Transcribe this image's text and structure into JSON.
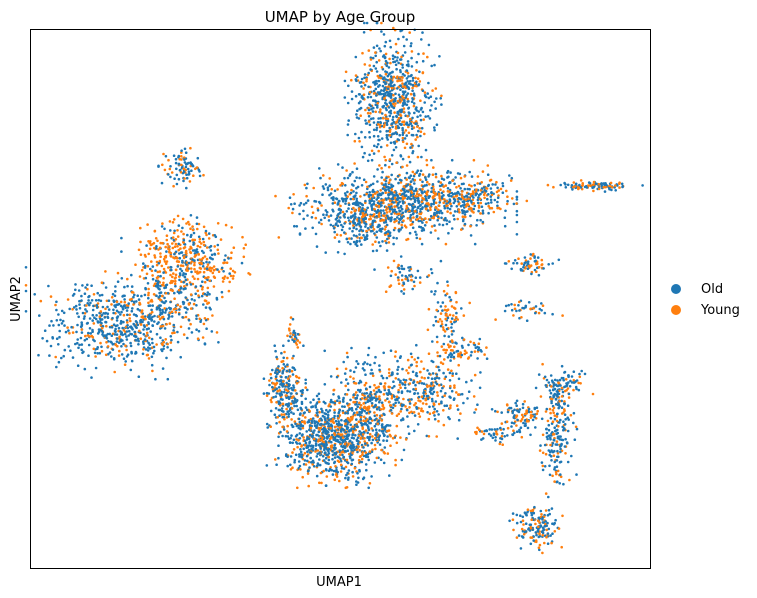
{
  "chart_data": {
    "type": "scatter",
    "title": "UMAP by Age Group",
    "xlabel": "UMAP1",
    "ylabel": "UMAP2",
    "xlim": [
      0,
      100
    ],
    "ylim": [
      0,
      100
    ],
    "ticks_shown": false,
    "grid": false,
    "legend_position": "right",
    "series": [
      {
        "name": "Old",
        "color": "#1f77b4"
      },
      {
        "name": "Young",
        "color": "#ff7f0e"
      }
    ],
    "clusters": [
      {
        "cx": 58.5,
        "cy": 87.0,
        "sx": 3.0,
        "sy": 5.5,
        "n": 700,
        "young_frac": 0.28
      },
      {
        "cx": 59.0,
        "cy": 68.0,
        "sx": 7.5,
        "sy": 3.0,
        "n": 950,
        "young_frac": 0.3
      },
      {
        "cx": 71.0,
        "cy": 69.0,
        "sx": 3.5,
        "sy": 1.8,
        "n": 180,
        "young_frac": 0.55
      },
      {
        "cx": 54.0,
        "cy": 63.0,
        "sx": 3.0,
        "sy": 2.0,
        "n": 150,
        "young_frac": 0.25
      },
      {
        "cx": 25.0,
        "cy": 57.5,
        "sx": 4.0,
        "sy": 3.5,
        "n": 400,
        "young_frac": 0.62
      },
      {
        "cx": 13.5,
        "cy": 45.5,
        "sx": 5.5,
        "sy": 4.0,
        "n": 550,
        "young_frac": 0.22
      },
      {
        "cx": 23.0,
        "cy": 49.0,
        "sx": 3.5,
        "sy": 3.5,
        "n": 220,
        "young_frac": 0.4
      },
      {
        "cx": 24.5,
        "cy": 74.5,
        "sx": 1.5,
        "sy": 1.5,
        "n": 90,
        "young_frac": 0.4
      },
      {
        "cx": 91.0,
        "cy": 71.0,
        "sx": 3.0,
        "sy": 0.4,
        "n": 100,
        "young_frac": 0.4
      },
      {
        "cx": 81.0,
        "cy": 56.5,
        "sx": 1.8,
        "sy": 0.8,
        "n": 60,
        "young_frac": 0.5
      },
      {
        "cx": 48.5,
        "cy": 24.0,
        "sx": 4.0,
        "sy": 3.5,
        "n": 850,
        "young_frac": 0.32
      },
      {
        "cx": 41.0,
        "cy": 33.0,
        "sx": 1.3,
        "sy": 3.2,
        "n": 220,
        "young_frac": 0.3
      },
      {
        "cx": 55.0,
        "cy": 30.5,
        "sx": 3.5,
        "sy": 4.0,
        "n": 350,
        "young_frac": 0.4
      },
      {
        "cx": 63.5,
        "cy": 33.0,
        "sx": 3.5,
        "sy": 3.5,
        "n": 280,
        "young_frac": 0.35
      },
      {
        "cx": 67.5,
        "cy": 47.0,
        "sx": 1.3,
        "sy": 2.5,
        "n": 80,
        "young_frac": 0.45
      },
      {
        "cx": 85.0,
        "cy": 24.5,
        "sx": 1.3,
        "sy": 4.5,
        "n": 170,
        "young_frac": 0.3
      },
      {
        "cx": 82.0,
        "cy": 8.0,
        "sx": 1.8,
        "sy": 2.0,
        "n": 150,
        "young_frac": 0.35
      },
      {
        "cx": 86.0,
        "cy": 34.5,
        "sx": 2.0,
        "sy": 1.3,
        "n": 70,
        "young_frac": 0.25
      },
      {
        "cx": 79.0,
        "cy": 28.5,
        "sx": 2.0,
        "sy": 1.3,
        "n": 90,
        "young_frac": 0.4
      },
      {
        "cx": 75.5,
        "cy": 25.0,
        "sx": 2.0,
        "sy": 0.8,
        "n": 50,
        "young_frac": 0.3
      },
      {
        "cx": 42.5,
        "cy": 43.0,
        "sx": 0.5,
        "sy": 1.5,
        "n": 30,
        "young_frac": 0.4
      },
      {
        "cx": 69.5,
        "cy": 40.5,
        "sx": 2.0,
        "sy": 1.0,
        "n": 60,
        "young_frac": 0.5
      },
      {
        "cx": 60.0,
        "cy": 54.0,
        "sx": 2.5,
        "sy": 1.5,
        "n": 60,
        "young_frac": 0.4
      },
      {
        "cx": 80.0,
        "cy": 48.0,
        "sx": 2.5,
        "sy": 0.8,
        "n": 40,
        "young_frac": 0.3
      },
      {
        "cx": 85.0,
        "cy": 32.0,
        "sx": 1.0,
        "sy": 2.0,
        "n": 40,
        "young_frac": 0.4
      }
    ]
  }
}
